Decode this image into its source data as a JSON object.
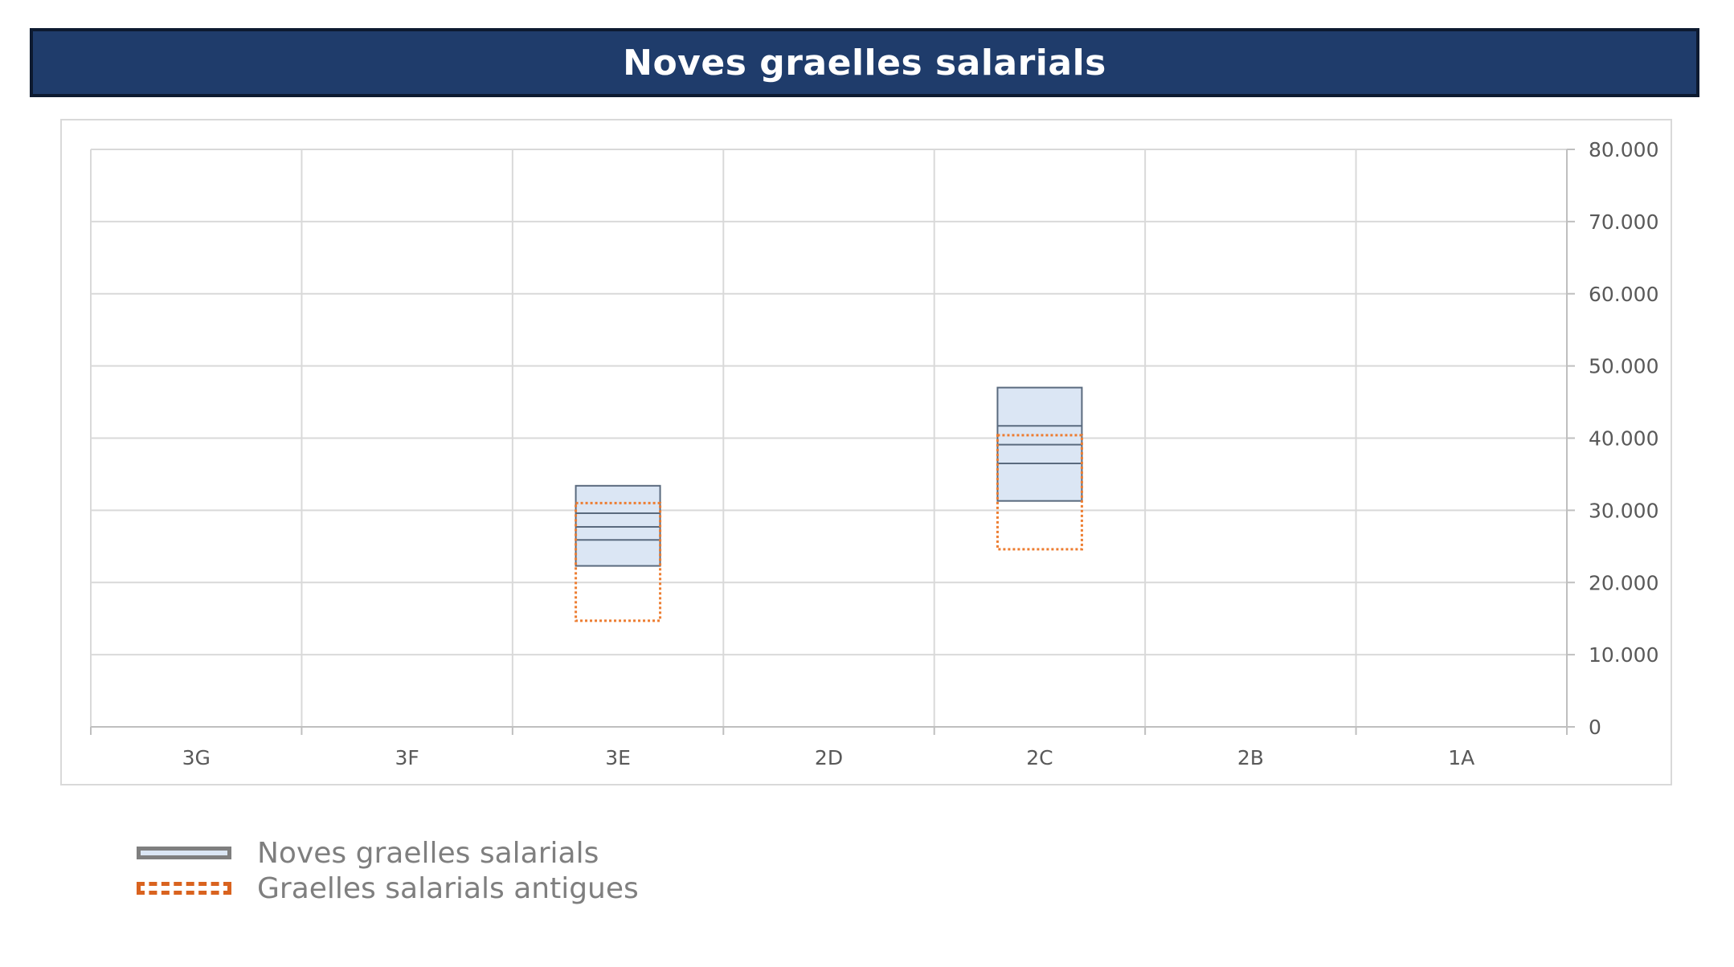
{
  "header": {
    "title": "Noves graelles salarials"
  },
  "chart_data": {
    "type": "floating-bar",
    "categories": [
      "3G",
      "3F",
      "3E",
      "2D",
      "2C",
      "2B",
      "1A"
    ],
    "yaxis": {
      "position": "right",
      "ylim": [
        0,
        80000
      ],
      "tick_labels": [
        "0",
        "10.000",
        "20.000",
        "30.000",
        "40.000",
        "50.000",
        "60.000",
        "70.000",
        "80.000"
      ]
    },
    "grid": true,
    "legend_position": "bottom-left",
    "series": [
      {
        "name": "Noves graelles salarials",
        "color": "#dbe6f4",
        "border": "#5a6a7e",
        "style": "solid",
        "ranges": [
          null,
          null,
          {
            "min": 22300,
            "max": 33400,
            "steps": [
              25900,
              27700,
              29600
            ]
          },
          null,
          {
            "min": 31300,
            "max": 47000,
            "steps": [
              36500,
              39100,
              41700
            ]
          },
          null,
          null
        ]
      },
      {
        "name": "Graelles salarials antigues",
        "color": "#ed7d31",
        "style": "dotted",
        "ranges": [
          null,
          null,
          {
            "min": 14700,
            "max": 31000
          },
          null,
          {
            "min": 24600,
            "max": 40400
          },
          null,
          null
        ]
      }
    ]
  },
  "legend": {
    "items": [
      {
        "label": "Noves graelles salarials",
        "swatch": "new-grid"
      },
      {
        "label": "Graelles salarials antigues",
        "swatch": "old-grid"
      }
    ]
  }
}
